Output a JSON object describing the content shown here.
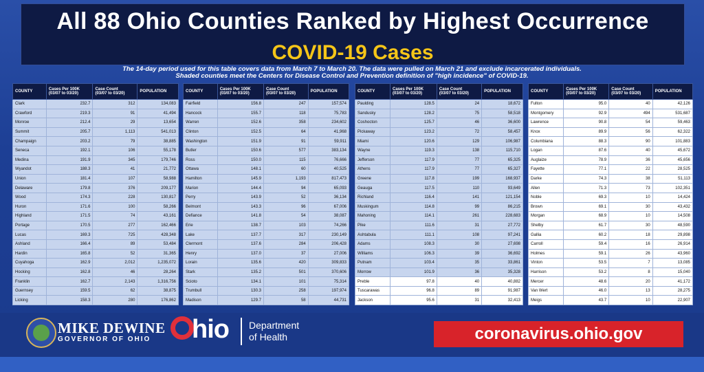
{
  "header": {
    "title": "All 88 Ohio Counties Ranked by Highest Occurrence",
    "subtitle": "COVID-19 Cases",
    "note_line1": "The 14-day period used for this table covers data from March 7 to March 20. The data were pulled on March 21 and exclude incarcerated individuals.",
    "note_line2": "Shaded counties meet the Centers for Disease Control and Prevention definition of \"high incidence\" of COVID-19."
  },
  "columns": {
    "county": "COUNTY",
    "rate": "Cases Per 100K",
    "rate_sub": "(03/07 to 03/20)",
    "count": "Case Count",
    "count_sub": "(03/07 to 03/20)",
    "population": "POPULATION"
  },
  "tables": [
    {
      "rows": [
        [
          "Clark",
          "232.7",
          "312",
          "134,083",
          true
        ],
        [
          "Crawford",
          "219.3",
          "91",
          "41,494",
          true
        ],
        [
          "Monroe",
          "212.4",
          "29",
          "13,654",
          true
        ],
        [
          "Summit",
          "205.7",
          "1,113",
          "541,013",
          true
        ],
        [
          "Champaign",
          "203.2",
          "79",
          "38,885",
          true
        ],
        [
          "Seneca",
          "192.1",
          "106",
          "55,178",
          true
        ],
        [
          "Medina",
          "191.9",
          "345",
          "179,746",
          true
        ],
        [
          "Wyandot",
          "188.3",
          "41",
          "21,772",
          true
        ],
        [
          "Union",
          "181.4",
          "107",
          "58,988",
          true
        ],
        [
          "Delaware",
          "179.8",
          "376",
          "209,177",
          true
        ],
        [
          "Wood",
          "174.3",
          "228",
          "130,817",
          true
        ],
        [
          "Huron",
          "171.6",
          "100",
          "58,266",
          true
        ],
        [
          "Highland",
          "171.5",
          "74",
          "43,161",
          true
        ],
        [
          "Portage",
          "170.5",
          "277",
          "162,466",
          true
        ],
        [
          "Lucas",
          "169.3",
          "725",
          "428,348",
          true
        ],
        [
          "Ashland",
          "166.4",
          "89",
          "53,484",
          true
        ],
        [
          "Hardin",
          "165.8",
          "52",
          "31,365",
          true
        ],
        [
          "Cuyahoga",
          "162.9",
          "2,012",
          "1,235,072",
          true
        ],
        [
          "Hocking",
          "162.8",
          "46",
          "28,264",
          true
        ],
        [
          "Franklin",
          "162.7",
          "2,143",
          "1,316,756",
          true
        ],
        [
          "Guernsey",
          "159.5",
          "62",
          "38,875",
          true
        ],
        [
          "Licking",
          "158.3",
          "280",
          "176,862",
          true
        ]
      ]
    },
    {
      "rows": [
        [
          "Fairfield",
          "156.8",
          "247",
          "157,574",
          true
        ],
        [
          "Hancock",
          "155.7",
          "118",
          "75,783",
          true
        ],
        [
          "Warren",
          "152.6",
          "358",
          "234,602",
          true
        ],
        [
          "Clinton",
          "152.5",
          "64",
          "41,968",
          true
        ],
        [
          "Washington",
          "151.9",
          "91",
          "59,911",
          true
        ],
        [
          "Butler",
          "150.6",
          "577",
          "383,134",
          true
        ],
        [
          "Ross",
          "150.0",
          "115",
          "76,666",
          true
        ],
        [
          "Ottawa",
          "148.1",
          "60",
          "40,525",
          true
        ],
        [
          "Hamilton",
          "145.9",
          "1,193",
          "817,473",
          true
        ],
        [
          "Marion",
          "144.4",
          "94",
          "65,093",
          true
        ],
        [
          "Perry",
          "143.9",
          "52",
          "36,134",
          true
        ],
        [
          "Belmont",
          "143.3",
          "96",
          "67,006",
          true
        ],
        [
          "Defiance",
          "141.8",
          "54",
          "38,087",
          true
        ],
        [
          "Erie",
          "138.7",
          "103",
          "74,266",
          true
        ],
        [
          "Lake",
          "137.7",
          "317",
          "230,149",
          true
        ],
        [
          "Clermont",
          "137.6",
          "284",
          "206,428",
          true
        ],
        [
          "Henry",
          "137.0",
          "37",
          "27,006",
          true
        ],
        [
          "Lorain",
          "135.6",
          "420",
          "309,833",
          true
        ],
        [
          "Stark",
          "135.2",
          "501",
          "370,606",
          true
        ],
        [
          "Scioto",
          "134.1",
          "101",
          "75,314",
          true
        ],
        [
          "Trumbull",
          "130.3",
          "258",
          "197,974",
          true
        ],
        [
          "Madison",
          "129.7",
          "58",
          "44,731",
          true
        ]
      ]
    },
    {
      "rows": [
        [
          "Paulding",
          "128.5",
          "24",
          "18,672",
          true
        ],
        [
          "Sandusky",
          "128.2",
          "75",
          "58,518",
          true
        ],
        [
          "Coshocton",
          "125.7",
          "46",
          "36,600",
          true
        ],
        [
          "Pickaway",
          "123.2",
          "72",
          "58,457",
          true
        ],
        [
          "Miami",
          "120.6",
          "129",
          "106,987",
          true
        ],
        [
          "Wayne",
          "119.3",
          "138",
          "115,710",
          true
        ],
        [
          "Jefferson",
          "117.9",
          "77",
          "65,325",
          true
        ],
        [
          "Athens",
          "117.9",
          "77",
          "65,327",
          true
        ],
        [
          "Greene",
          "117.8",
          "199",
          "168,937",
          true
        ],
        [
          "Geauga",
          "117.5",
          "110",
          "93,649",
          true
        ],
        [
          "Richland",
          "116.4",
          "141",
          "121,154",
          true
        ],
        [
          "Muskingum",
          "114.8",
          "99",
          "86,215",
          true
        ],
        [
          "Mahoning",
          "114.1",
          "261",
          "228,683",
          true
        ],
        [
          "Pike",
          "111.6",
          "31",
          "27,772",
          true
        ],
        [
          "Ashtabula",
          "111.1",
          "108",
          "97,241",
          true
        ],
        [
          "Adams",
          "108.3",
          "30",
          "27,698",
          true
        ],
        [
          "Williams",
          "106.3",
          "39",
          "36,692",
          true
        ],
        [
          "Putnam",
          "103.4",
          "35",
          "33,861",
          true
        ],
        [
          "Morrow",
          "101.9",
          "36",
          "35,328",
          true
        ],
        [
          "Preble",
          "97.8",
          "40",
          "40,882",
          false
        ],
        [
          "Tuscarawas",
          "96.8",
          "89",
          "91,987",
          false
        ],
        [
          "Jackson",
          "95.6",
          "31",
          "32,413",
          false
        ]
      ]
    },
    {
      "rows": [
        [
          "Fulton",
          "95.0",
          "40",
          "42,126",
          false
        ],
        [
          "Montgomery",
          "92.9",
          "494",
          "531,687",
          false
        ],
        [
          "Lawrence",
          "90.8",
          "54",
          "59,463",
          false
        ],
        [
          "Knox",
          "89.9",
          "56",
          "62,322",
          false
        ],
        [
          "Columbiana",
          "88.3",
          "90",
          "101,883",
          false
        ],
        [
          "Logan",
          "87.6",
          "40",
          "45,672",
          false
        ],
        [
          "Auglaize",
          "78.9",
          "36",
          "45,656",
          false
        ],
        [
          "Fayette",
          "77.1",
          "22",
          "28,525",
          false
        ],
        [
          "Darke",
          "74.3",
          "38",
          "51,113",
          false
        ],
        [
          "Allen",
          "71.3",
          "73",
          "102,351",
          false
        ],
        [
          "Noble",
          "69.3",
          "10",
          "14,424",
          false
        ],
        [
          "Brown",
          "69.1",
          "30",
          "43,432",
          false
        ],
        [
          "Morgan",
          "68.9",
          "10",
          "14,508",
          false
        ],
        [
          "Shelby",
          "61.7",
          "30",
          "48,590",
          false
        ],
        [
          "Gallia",
          "60.2",
          "18",
          "29,898",
          false
        ],
        [
          "Carroll",
          "59.4",
          "16",
          "26,914",
          false
        ],
        [
          "Holmes",
          "59.1",
          "26",
          "43,960",
          false
        ],
        [
          "Vinton",
          "53.5",
          "7",
          "13,085",
          false
        ],
        [
          "Harrison",
          "53.2",
          "8",
          "15,040",
          false
        ],
        [
          "Mercer",
          "48.6",
          "20",
          "41,172",
          false
        ],
        [
          "Van Wert",
          "46.0",
          "13",
          "28,275",
          false
        ],
        [
          "Meigs",
          "43.7",
          "10",
          "22,907",
          false
        ]
      ]
    }
  ],
  "footer": {
    "governor_name": "MIKE DEWINE",
    "governor_title": "GOVERNOR OF OHIO",
    "ohio_logo_text": "hio",
    "dept_line1": "Department",
    "dept_line2": "of Health",
    "url": "coronavirus.ohio.gov"
  },
  "colors": {
    "header_bg": "#0e1a44",
    "title": "#ffffff",
    "subtitle": "#f5c518",
    "shaded_row": "#c7d5ee",
    "plain_row": "#ffffff",
    "url_bg": "#d8232a",
    "ohio_o": "#e0303b"
  }
}
